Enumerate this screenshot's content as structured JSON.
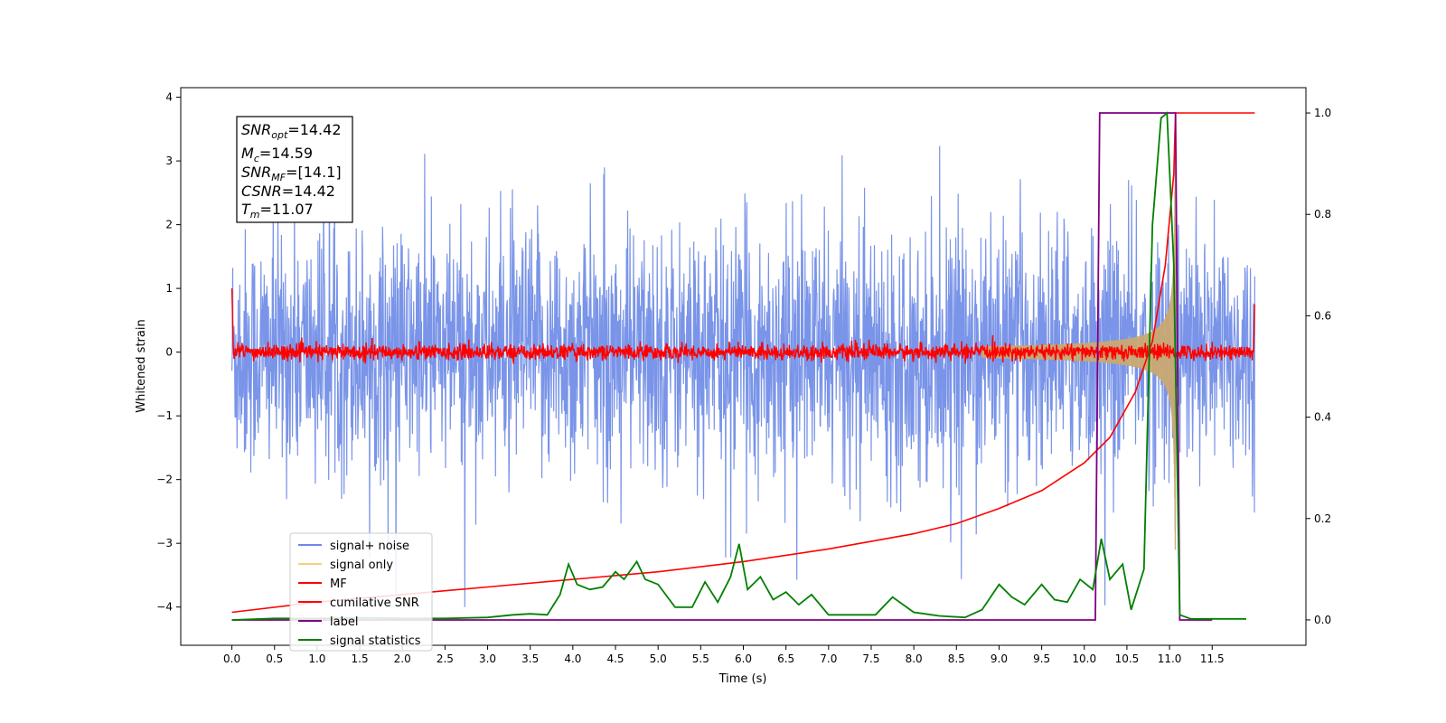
{
  "chart_data": {
    "type": "line",
    "xlabel": "Time (s)",
    "ylabel": "Whitened strain",
    "x_ticks": [
      "0.0",
      "0.5",
      "1.0",
      "1.5",
      "2.0",
      "2.5",
      "3.0",
      "3.5",
      "4.0",
      "4.5",
      "5.0",
      "5.5",
      "6.0",
      "6.5",
      "7.0",
      "7.5",
      "8.0",
      "8.5",
      "9.0",
      "9.5",
      "10.0",
      "10.5",
      "11.0",
      "11.5"
    ],
    "y_ticks": [
      "4",
      "3",
      "2",
      "1",
      "0",
      "−1",
      "−2",
      "−3",
      "−4"
    ],
    "y2_ticks": [
      "1.0",
      "0.8",
      "0.6",
      "0.4",
      "0.2",
      "0.0"
    ],
    "xlim": [
      -0.6,
      12.6
    ],
    "ylim": [
      -4.6,
      4.15
    ],
    "y2lim": [
      -0.05,
      1.05
    ],
    "legend_position": "lower-left",
    "colors": {
      "signal_noise": "#6a88e6",
      "signal_only": "#f3cf83",
      "mf": "#ff0000",
      "cumulative_snr": "#ff0000",
      "label": "#800080",
      "signal_statistics": "#008000"
    },
    "series": [
      {
        "name": "signal+ noise",
        "axis": "left",
        "description": "whitened strain, noise amplitude approx ±2.5 with spikes to ±3.7 across 0–12 s"
      },
      {
        "name": "signal only",
        "axis": "left",
        "description": "chirp growing from 0 near 9 s to amplitude ~3 at 11.07 s"
      },
      {
        "name": "MF",
        "axis": "left",
        "noise_level": 0.1,
        "values_note": "near 0 throughout, ~1.0 at t=0 and ~0.75 at t=12"
      },
      {
        "name": "cumilative SNR",
        "axis": "right",
        "x": [
          0.0,
          1.0,
          2.0,
          3.0,
          4.0,
          5.0,
          6.0,
          7.0,
          8.0,
          8.5,
          9.0,
          9.5,
          10.0,
          10.3,
          10.6,
          10.8,
          10.95,
          11.05,
          11.07,
          12.0
        ],
        "y": [
          0.015,
          0.035,
          0.05,
          0.065,
          0.08,
          0.095,
          0.115,
          0.14,
          0.17,
          0.19,
          0.22,
          0.255,
          0.31,
          0.36,
          0.45,
          0.55,
          0.7,
          0.88,
          1.0,
          1.0
        ]
      },
      {
        "name": "label",
        "axis": "right",
        "x": [
          0.0,
          10.13,
          10.18,
          11.07,
          11.12,
          11.5
        ],
        "y": [
          0.0,
          0.0,
          1.0,
          1.0,
          0.0,
          0.0
        ]
      },
      {
        "name": "signal statistics",
        "axis": "right",
        "x": [
          0.0,
          0.5,
          1.0,
          1.5,
          2.0,
          2.5,
          3.0,
          3.3,
          3.5,
          3.7,
          3.85,
          3.95,
          4.05,
          4.2,
          4.35,
          4.5,
          4.6,
          4.75,
          4.85,
          5.0,
          5.2,
          5.4,
          5.55,
          5.7,
          5.85,
          5.95,
          6.05,
          6.2,
          6.35,
          6.5,
          6.65,
          6.8,
          7.0,
          7.3,
          7.55,
          7.75,
          8.0,
          8.3,
          8.6,
          8.8,
          9.0,
          9.15,
          9.3,
          9.5,
          9.65,
          9.8,
          9.95,
          10.1,
          10.2,
          10.3,
          10.45,
          10.55,
          10.7,
          10.8,
          10.9,
          10.97,
          11.05,
          11.12,
          11.25,
          11.5,
          11.9
        ],
        "y": [
          0.0,
          0.003,
          0.003,
          0.004,
          0.003,
          0.003,
          0.005,
          0.01,
          0.012,
          0.01,
          0.05,
          0.11,
          0.07,
          0.06,
          0.065,
          0.095,
          0.08,
          0.115,
          0.08,
          0.07,
          0.025,
          0.025,
          0.075,
          0.035,
          0.085,
          0.15,
          0.06,
          0.085,
          0.04,
          0.055,
          0.03,
          0.05,
          0.01,
          0.01,
          0.01,
          0.045,
          0.015,
          0.008,
          0.005,
          0.02,
          0.07,
          0.045,
          0.03,
          0.07,
          0.04,
          0.035,
          0.08,
          0.06,
          0.16,
          0.08,
          0.11,
          0.02,
          0.1,
          0.78,
          0.99,
          1.0,
          0.7,
          0.01,
          0.002,
          0.002,
          0.002
        ]
      }
    ]
  },
  "legend": {
    "items": [
      "signal+ noise",
      "signal only",
      "MF",
      "cumilative SNR",
      "label",
      "signal statistics"
    ]
  },
  "annotation": {
    "snr_opt_value": "=14.42",
    "mc_value": "=14.59",
    "snr_mf_value": "=[14.1]",
    "csnr_value": "=14.42",
    "tm_value": "=11.07"
  }
}
